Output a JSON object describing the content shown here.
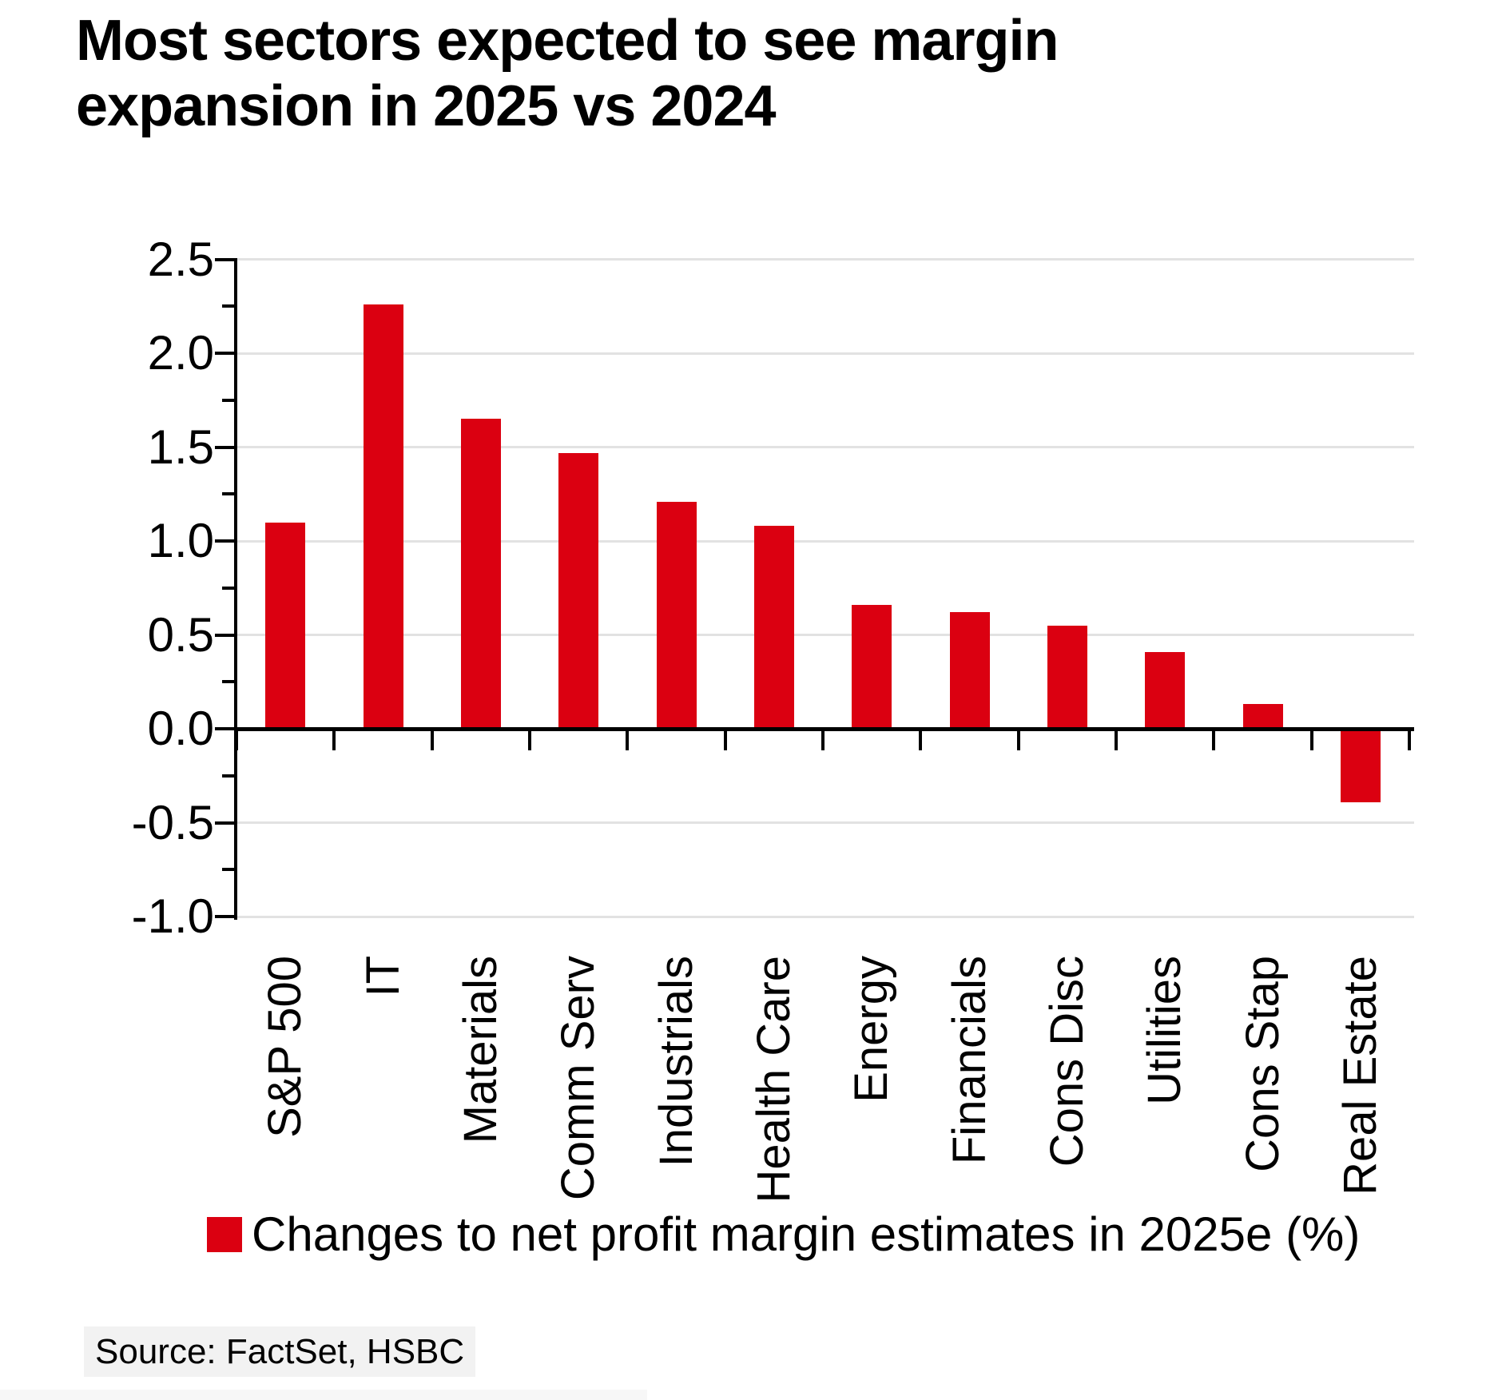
{
  "title": {
    "line1": "Most sectors expected to see margin",
    "line2": "expansion in 2025 vs 2024"
  },
  "chart_data": {
    "type": "bar",
    "title": "Most sectors expected to see margin expansion in 2025 vs 2024",
    "categories": [
      "S&P 500",
      "IT",
      "Materials",
      "Comm Serv",
      "Industrials",
      "Health Care",
      "Energy",
      "Financials",
      "Cons Disc",
      "Utilities",
      "Cons Stap",
      "Real Estate"
    ],
    "values": [
      1.1,
      2.26,
      1.65,
      1.47,
      1.21,
      1.08,
      0.66,
      0.62,
      0.55,
      0.41,
      0.13,
      -0.39
    ],
    "series_name": "Changes to net profit margin estimates in 2025e (%)",
    "xlabel": "",
    "ylabel": "",
    "ylim": [
      -1.0,
      2.5
    ],
    "y_tick_step": 0.5,
    "y_minor_tick_step": 0.25,
    "y_tick_labels": [
      "2.5",
      "2.0",
      "1.5",
      "1.0",
      "0.5",
      "0.0",
      "-0.5",
      "-1.0"
    ],
    "grid": "horizontal",
    "legend_position": "bottom"
  },
  "legend": {
    "label": "Changes to net profit margin estimates in 2025e (%)"
  },
  "source": {
    "text": "Source: FactSet, HSBC"
  },
  "colors": {
    "bar": "#DB0011",
    "grid": "#E2E2E2",
    "axis": "#000000",
    "text": "#000000",
    "source_bg": "#F2F2F2",
    "background": "#FFFFFF"
  }
}
